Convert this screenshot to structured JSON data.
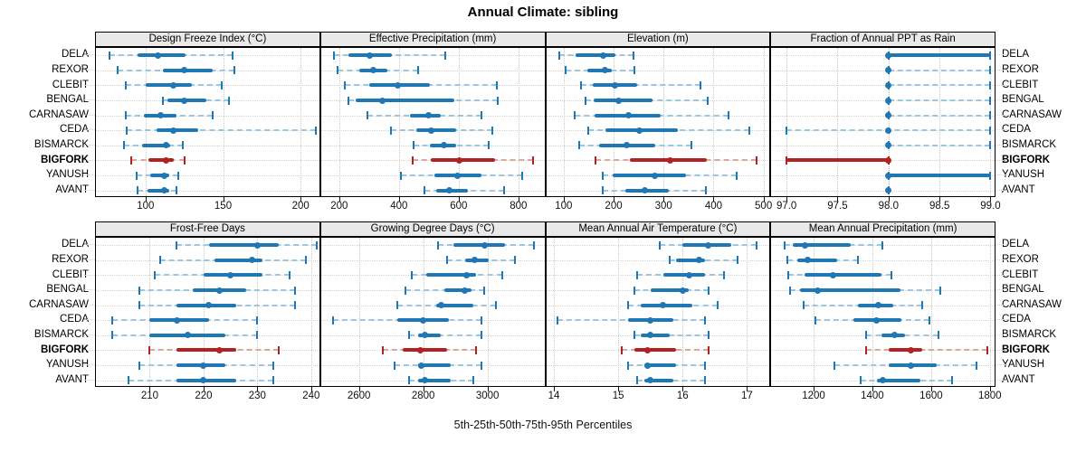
{
  "title": "Annual Climate: sibling",
  "caption": "5th-25th-50th-75th-95th Percentiles",
  "stations": [
    "DELA",
    "REXOR",
    "CLEBIT",
    "BENGAL",
    "CARNASAW",
    "CEDA",
    "BISMARCK",
    "BIGFORK",
    "YANUSH",
    "AVANT"
  ],
  "highlight_station": "BIGFORK",
  "percentiles": [
    "5th",
    "25th",
    "50th",
    "75th",
    "95th"
  ],
  "colors": {
    "line": "#1f77b4",
    "line_light": "#9ec7df",
    "highlight": "#b22222",
    "highlight_light": "#dba89f",
    "strip_bg": "#e9e9e9",
    "grid": "#c9c9c9",
    "border": "#000000"
  },
  "chart_data": [
    {
      "type": "scatter",
      "name": "design-freeze-index",
      "title": "Design Freeze Index (°C)",
      "xlim": [
        68,
        212
      ],
      "ticks": [
        100,
        150,
        200
      ],
      "tick_labels": [
        "100",
        "150",
        "200"
      ],
      "series": {
        "DELA": [
          77,
          95,
          108,
          126,
          156
        ],
        "REXOR": [
          82,
          111,
          125,
          143,
          157
        ],
        "CLEBIT": [
          87,
          100,
          118,
          130,
          149
        ],
        "BENGAL": [
          111,
          114,
          125,
          139,
          154
        ],
        "CARNASAW": [
          87,
          99,
          110,
          120,
          143
        ],
        "CEDA": [
          88,
          107,
          118,
          134,
          210
        ],
        "BISMARCK": [
          86,
          98,
          113,
          116,
          124
        ],
        "BIGFORK": [
          91,
          102,
          113,
          118,
          125
        ],
        "YANUSH": [
          94,
          103,
          112,
          115,
          121
        ],
        "AVANT": [
          95,
          101,
          112,
          115,
          120
        ]
      }
    },
    {
      "type": "scatter",
      "name": "effective-precipitation",
      "title": "Effective Precipitation (mm)",
      "xlim": [
        139,
        887
      ],
      "ticks": [
        200,
        400,
        600,
        800
      ],
      "tick_labels": [
        "200",
        "400",
        "600",
        "800"
      ],
      "series": {
        "DELA": [
          182,
          232,
          303,
          377,
          555
        ],
        "REXOR": [
          195,
          266,
          314,
          362,
          463
        ],
        "CLEBIT": [
          220,
          301,
          395,
          504,
          727
        ],
        "BENGAL": [
          230,
          256,
          345,
          585,
          732
        ],
        "CARNASAW": [
          294,
          438,
          499,
          539,
          676
        ],
        "CEDA": [
          372,
          458,
          507,
          590,
          713
        ],
        "BISMARCK": [
          450,
          504,
          549,
          590,
          701
        ],
        "BIGFORK": [
          446,
          507,
          602,
          722,
          848
        ],
        "YANUSH": [
          406,
          519,
          597,
          676,
          813
        ],
        "AVANT": [
          484,
          524,
          570,
          631,
          752
        ]
      }
    },
    {
      "type": "scatter",
      "name": "elevation",
      "title": "Elevation (m)",
      "xlim": [
        65,
        512
      ],
      "ticks": [
        100,
        200,
        300,
        400,
        500
      ],
      "tick_labels": [
        "100",
        "200",
        "300",
        "400",
        "500"
      ],
      "series": {
        "DELA": [
          91,
          123,
          179,
          204,
          240
        ],
        "REXOR": [
          104,
          148,
          183,
          197,
          242
        ],
        "CLEBIT": [
          135,
          158,
          203,
          247,
          373
        ],
        "BENGAL": [
          143,
          160,
          210,
          278,
          388
        ],
        "CARNASAW": [
          122,
          162,
          230,
          295,
          430
        ],
        "CEDA": [
          149,
          183,
          251,
          329,
          472
        ],
        "BISMARCK": [
          132,
          171,
          227,
          283,
          355
        ],
        "BIGFORK": [
          164,
          233,
          314,
          387,
          486
        ],
        "YANUSH": [
          179,
          198,
          282,
          344,
          446
        ],
        "AVANT": [
          179,
          223,
          262,
          310,
          385
        ]
      }
    },
    {
      "type": "scatter",
      "name": "fraction-annual-ppt-rain",
      "title": "Fraction of Annual PPT as Rain",
      "xlim": [
        96.85,
        99.04
      ],
      "ticks": [
        97.0,
        97.5,
        98.0,
        98.5,
        99.0
      ],
      "tick_labels": [
        "97.0",
        "97.5",
        "98.0",
        "98.5",
        "99.0"
      ],
      "series": {
        "DELA": [
          98,
          98,
          98,
          99,
          99
        ],
        "REXOR": [
          98,
          98,
          98,
          98,
          99
        ],
        "CLEBIT": [
          98,
          98,
          98,
          98,
          99
        ],
        "BENGAL": [
          98,
          98,
          98,
          98,
          99
        ],
        "CARNASAW": [
          98,
          98,
          98,
          98,
          99
        ],
        "CEDA": [
          97,
          98,
          98,
          98,
          99
        ],
        "BISMARCK": [
          98,
          98,
          98,
          98,
          99
        ],
        "BIGFORK": [
          97,
          97,
          98,
          98,
          98
        ],
        "YANUSH": [
          98,
          98,
          98,
          99,
          99
        ],
        "AVANT": [
          98,
          98,
          98,
          98,
          98
        ]
      }
    },
    {
      "type": "scatter",
      "name": "frost-free-days",
      "title": "Frost-Free Days",
      "xlim": [
        200,
        241.5
      ],
      "ticks": [
        210,
        220,
        230,
        240
      ],
      "tick_labels": [
        "210",
        "220",
        "230",
        "240"
      ],
      "series": {
        "DELA": [
          215,
          221,
          230,
          234,
          241
        ],
        "REXOR": [
          212,
          222,
          229,
          231,
          239
        ],
        "CLEBIT": [
          211,
          220,
          225,
          231,
          236
        ],
        "BENGAL": [
          208,
          218,
          223,
          228,
          237
        ],
        "CARNASAW": [
          208,
          215,
          221,
          226,
          237
        ],
        "CEDA": [
          203,
          210,
          215,
          221,
          230
        ],
        "BISMARCK": [
          203,
          210,
          217,
          224,
          230
        ],
        "BIGFORK": [
          210,
          215,
          223,
          226,
          234
        ],
        "YANUSH": [
          208,
          215,
          220,
          224,
          233
        ],
        "AVANT": [
          206,
          215,
          220,
          226,
          233
        ]
      }
    },
    {
      "type": "scatter",
      "name": "growing-degree-days",
      "title": "Growing Degree Days (°C)",
      "xlim": [
        2482,
        3177
      ],
      "ticks": [
        2600,
        2800,
        3000
      ],
      "tick_labels": [
        "2600",
        "2800",
        "3000"
      ],
      "series": {
        "DELA": [
          2845,
          2895,
          2990,
          3055,
          3145
        ],
        "REXOR": [
          2875,
          2930,
          2960,
          3005,
          3085
        ],
        "CLEBIT": [
          2765,
          2810,
          2935,
          2965,
          3045
        ],
        "BENGAL": [
          2745,
          2865,
          2930,
          2950,
          2990
        ],
        "CARNASAW": [
          2720,
          2840,
          2855,
          2955,
          3025
        ],
        "CEDA": [
          2520,
          2720,
          2800,
          2880,
          2980
        ],
        "BISMARCK": [
          2755,
          2785,
          2805,
          2855,
          2980
        ],
        "BIGFORK": [
          2675,
          2735,
          2790,
          2875,
          2965
        ],
        "YANUSH": [
          2710,
          2785,
          2795,
          2885,
          2980
        ],
        "AVANT": [
          2755,
          2785,
          2805,
          2885,
          2955
        ]
      }
    },
    {
      "type": "scatter",
      "name": "mean-annual-air-temperature",
      "title": "Mean Annual Air Temperature (°C)",
      "xlim": [
        13.88,
        17.35
      ],
      "ticks": [
        14,
        15,
        16,
        17
      ],
      "tick_labels": [
        "14",
        "15",
        "16",
        "17"
      ],
      "series": {
        "DELA": [
          15.65,
          16.0,
          16.4,
          16.75,
          17.15
        ],
        "REXOR": [
          15.8,
          15.9,
          16.25,
          16.35,
          16.85
        ],
        "CLEBIT": [
          15.3,
          15.7,
          16.1,
          16.35,
          16.65
        ],
        "BENGAL": [
          15.25,
          15.5,
          16.0,
          16.1,
          16.4
        ],
        "CARNASAW": [
          15.15,
          15.35,
          15.7,
          16.15,
          16.55
        ],
        "CEDA": [
          14.05,
          15.15,
          15.5,
          15.85,
          16.35
        ],
        "BISMARCK": [
          15.25,
          15.35,
          15.5,
          15.8,
          16.4
        ],
        "BIGFORK": [
          15.05,
          15.25,
          15.45,
          15.9,
          16.4
        ],
        "YANUSH": [
          15.15,
          15.4,
          15.45,
          15.9,
          16.35
        ],
        "AVANT": [
          15.3,
          15.4,
          15.5,
          15.85,
          16.35
        ]
      }
    },
    {
      "type": "scatter",
      "name": "mean-annual-precipitation",
      "title": "Mean Annual Precipitation (mm)",
      "xlim": [
        1056,
        1816
      ],
      "ticks": [
        1200,
        1400,
        1600,
        1800
      ],
      "tick_labels": [
        "1200",
        "1400",
        "1600",
        "1800"
      ],
      "series": {
        "DELA": [
          1100,
          1130,
          1170,
          1325,
          1435
        ],
        "REXOR": [
          1110,
          1145,
          1180,
          1280,
          1350
        ],
        "CLEBIT": [
          1115,
          1170,
          1265,
          1430,
          1465
        ],
        "BENGAL": [
          1120,
          1155,
          1215,
          1495,
          1630
        ],
        "CARNASAW": [
          1165,
          1350,
          1420,
          1470,
          1570
        ],
        "CEDA": [
          1205,
          1335,
          1415,
          1500,
          1595
        ],
        "BISMARCK": [
          1380,
          1430,
          1475,
          1510,
          1625
        ],
        "BIGFORK": [
          1380,
          1455,
          1530,
          1570,
          1790
        ],
        "YANUSH": [
          1270,
          1455,
          1530,
          1620,
          1755
        ],
        "AVANT": [
          1360,
          1415,
          1435,
          1565,
          1670
        ]
      }
    }
  ]
}
